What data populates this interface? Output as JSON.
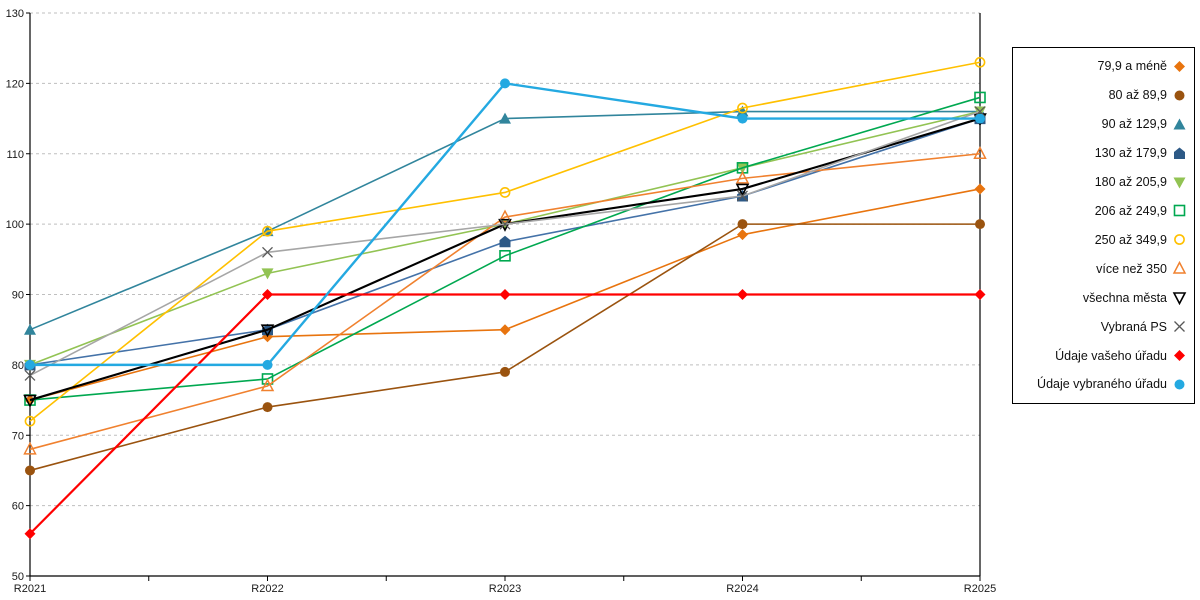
{
  "chart_data": {
    "type": "line",
    "title": "",
    "xlabel": "",
    "ylabel": "",
    "categories": [
      "R2021",
      "R2022",
      "R2023",
      "R2024",
      "R2025"
    ],
    "ylim": [
      50,
      130
    ],
    "y_ticks": [
      50,
      60,
      70,
      80,
      90,
      100,
      110,
      120,
      130
    ],
    "grid": "horizontal-dashed",
    "legend_position": "right-box",
    "series": [
      {
        "name": "79,9 a méně",
        "marker": "diamond-filled",
        "color": "#E8740E",
        "line_width": 1.6,
        "values": [
          75,
          84,
          85,
          98.5,
          105
        ]
      },
      {
        "name": "80 až 89,9",
        "marker": "circle-filled",
        "color": "#9A530F",
        "line_width": 1.6,
        "values": [
          65,
          74,
          79,
          100,
          100
        ]
      },
      {
        "name": "90 až 129,9",
        "marker": "triangle-filled",
        "color": "#31859C",
        "line_width": 1.6,
        "values": [
          85,
          99,
          115,
          116,
          116
        ]
      },
      {
        "name": "130 až 179,9",
        "marker": "pentagon-filled",
        "color": "#2D5986",
        "line_color": "#4472A8",
        "line_width": 1.6,
        "values": [
          80,
          85,
          97.5,
          104,
          115
        ]
      },
      {
        "name": "180 až 205,9",
        "marker": "triangle-down-filled",
        "color": "#92C353",
        "line_width": 1.6,
        "values": [
          80,
          93,
          100,
          108,
          116
        ]
      },
      {
        "name": "206 až 249,9",
        "marker": "square-open",
        "color": "#00A850",
        "line_width": 1.6,
        "values": [
          75,
          78,
          95.5,
          108,
          118
        ]
      },
      {
        "name": "250 až 349,9",
        "marker": "circle-open",
        "color": "#FFC000",
        "line_width": 1.6,
        "values": [
          72,
          99,
          104.5,
          116.5,
          123
        ]
      },
      {
        "name": "více než 350",
        "marker": "triangle-open",
        "color": "#F0812F",
        "line_width": 1.6,
        "values": [
          68,
          77,
          101,
          106.5,
          110
        ]
      },
      {
        "name": "všechna města",
        "marker": "triangle-down-open",
        "color": "#000000",
        "line_width": 2.1,
        "values": [
          75,
          85,
          100,
          105,
          115
        ]
      },
      {
        "name": "Vybraná PS",
        "marker": "x-cross",
        "color": "#A6A6A6",
        "marker_color": "#595959",
        "line_width": 1.6,
        "values": [
          78.5,
          96,
          100,
          104,
          116
        ]
      },
      {
        "name": "Údaje vašeho úřadu",
        "marker": "diamond-filled",
        "color": "#FF0000",
        "line_width": 2.2,
        "values": [
          56,
          90,
          90,
          90,
          90
        ]
      },
      {
        "name": "Údaje vybraného úřadu",
        "marker": "circle-filled",
        "color": "#24A9E1",
        "line_width": 2.4,
        "values": [
          80,
          80,
          120,
          115,
          115
        ]
      }
    ],
    "colors": {
      "gridline": "#BFBFBF",
      "axis": "#000000",
      "background": "#FFFFFF",
      "text": "#1A1A1A"
    }
  }
}
